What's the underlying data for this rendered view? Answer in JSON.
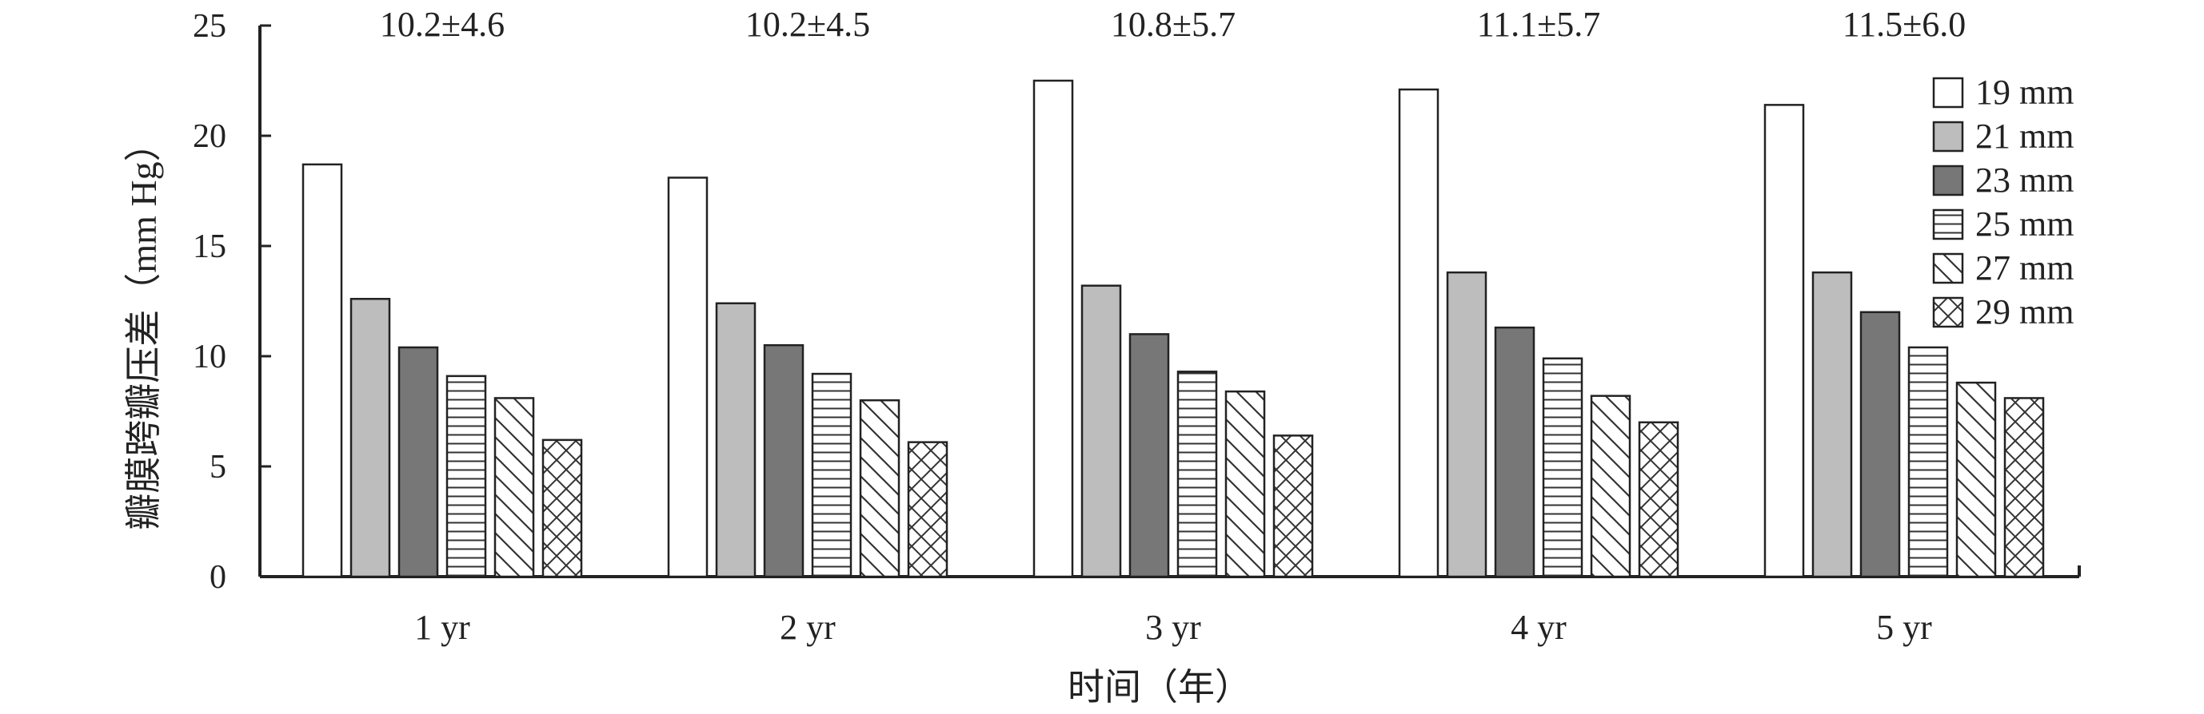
{
  "chart_data": {
    "type": "bar",
    "categories": [
      "1 yr",
      "2 yr",
      "3 yr",
      "4 yr",
      "5 yr"
    ],
    "series": [
      {
        "name": "19 mm",
        "values": [
          18.7,
          18.1,
          22.5,
          22.1,
          21.4
        ],
        "fill": "#ffffff",
        "pattern": "none"
      },
      {
        "name": "21 mm",
        "values": [
          12.6,
          12.4,
          13.2,
          13.8,
          13.8
        ],
        "fill": "#bdbdbd",
        "pattern": "none"
      },
      {
        "name": "23 mm",
        "values": [
          10.4,
          10.5,
          11.0,
          11.3,
          12.0
        ],
        "fill": "#777777",
        "pattern": "none"
      },
      {
        "name": "25 mm",
        "values": [
          9.1,
          9.2,
          9.3,
          9.9,
          10.4
        ],
        "fill": "#ffffff",
        "pattern": "horizontal-lines"
      },
      {
        "name": "27 mm",
        "values": [
          8.1,
          8.0,
          8.4,
          8.2,
          8.8
        ],
        "fill": "#ffffff",
        "pattern": "diagonal-lines"
      },
      {
        "name": "29 mm",
        "values": [
          6.2,
          6.1,
          6.4,
          7.0,
          8.1
        ],
        "fill": "#ffffff",
        "pattern": "crosshatch"
      }
    ],
    "annotations": [
      "10.2±4.6",
      "10.2±4.5",
      "10.8±5.7",
      "11.1±5.7",
      "11.5±6.0"
    ],
    "ylabel": "瓣膜跨瓣压差（mm Hg）",
    "xlabel": "时间（年）",
    "ylim": [
      0,
      25
    ],
    "yticks": [
      0,
      5,
      10,
      15,
      20,
      25
    ],
    "grid": false,
    "legend_position": "top-right"
  }
}
